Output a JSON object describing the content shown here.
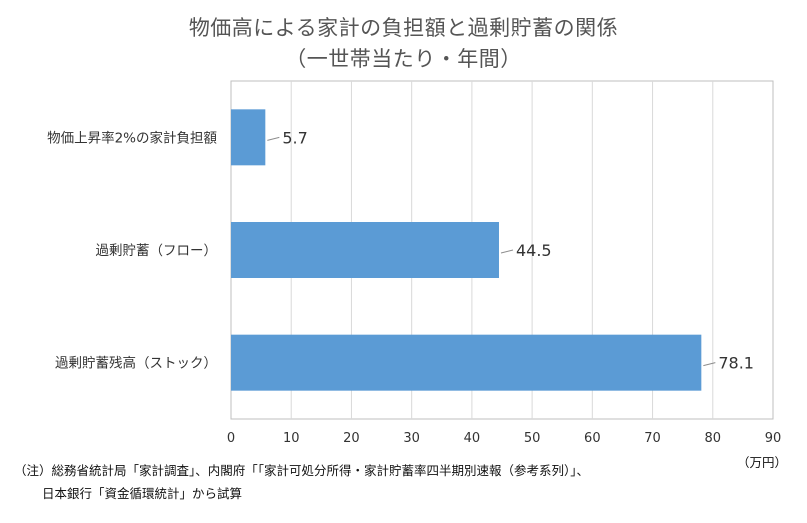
{
  "title": "物価高による家計の負担額と過剰貯蓄の関係",
  "subtitle": "（一世帯当たり・年間）",
  "chart_data": {
    "type": "bar",
    "orientation": "horizontal",
    "categories": [
      "物価上昇率2%の家計負担額",
      "過剰貯蓄（フロー）",
      "過剰貯蓄残高（ストック）"
    ],
    "values": [
      5.7,
      44.5,
      78.1
    ],
    "data_labels": [
      "5.7",
      "44.5",
      "78.1"
    ],
    "xlim": [
      0,
      90
    ],
    "xticks": [
      0,
      10,
      20,
      30,
      40,
      50,
      60,
      70,
      80,
      90
    ],
    "xunit": "（万円）",
    "grid": "vertical",
    "bar_color": "#5b9bd5"
  },
  "notes": {
    "line1": "（注）総務省統計局「家計調査」、内閣府「「家計可処分所得・家計貯蓄率四半期別速報（参考系列）」、",
    "line2": "日本銀行「資金循環統計」から試算"
  }
}
